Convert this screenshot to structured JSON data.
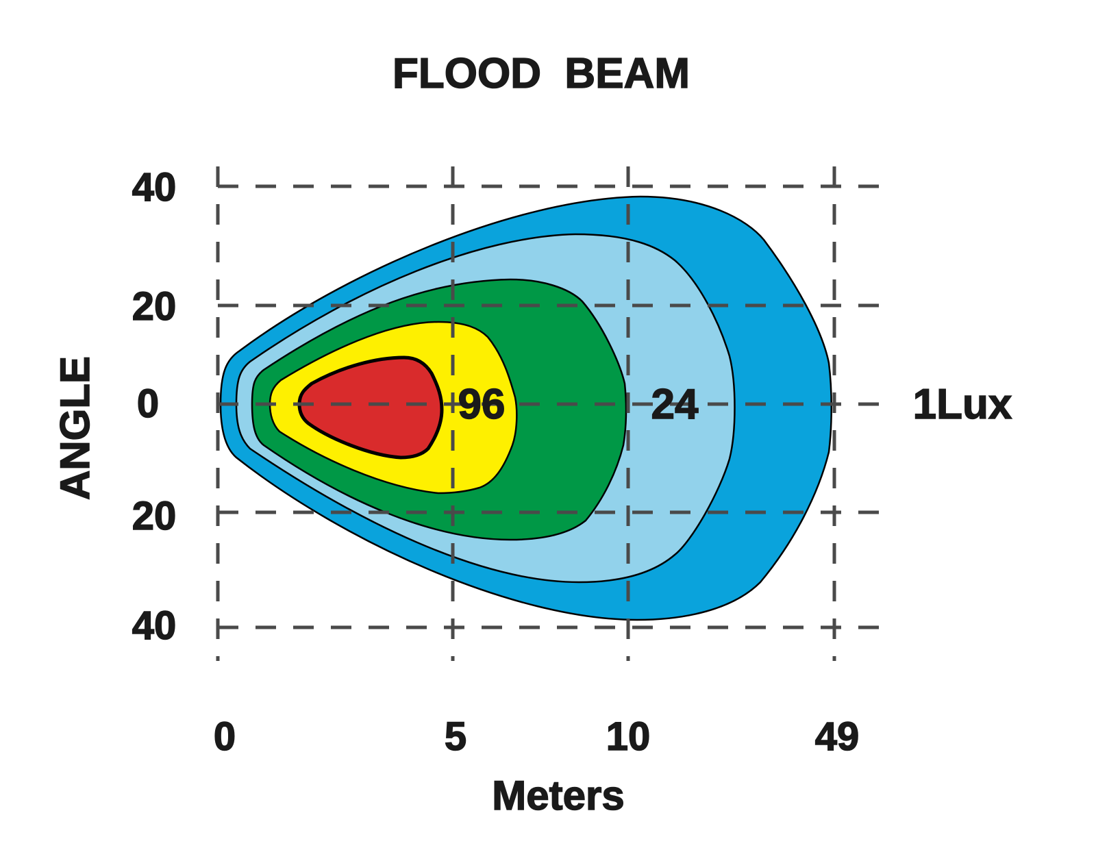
{
  "chart_data": {
    "type": "isolux-diagram",
    "title": "FLOOD  BEAM",
    "xlabel": "Meters",
    "ylabel": "ANGLE",
    "x_ticks": [
      "0",
      "5",
      "10",
      "49"
    ],
    "y_ticks": [
      "40",
      "20",
      "0",
      "20",
      "40"
    ],
    "grid": true,
    "zone_labels": [
      "96",
      "24",
      "1Lux"
    ],
    "zone_colors": {
      "outer": "#0aa3dc",
      "light_blue": "#92d2eb",
      "green": "#009846",
      "yellow": "#fef000",
      "red": "#d92b2c"
    }
  }
}
